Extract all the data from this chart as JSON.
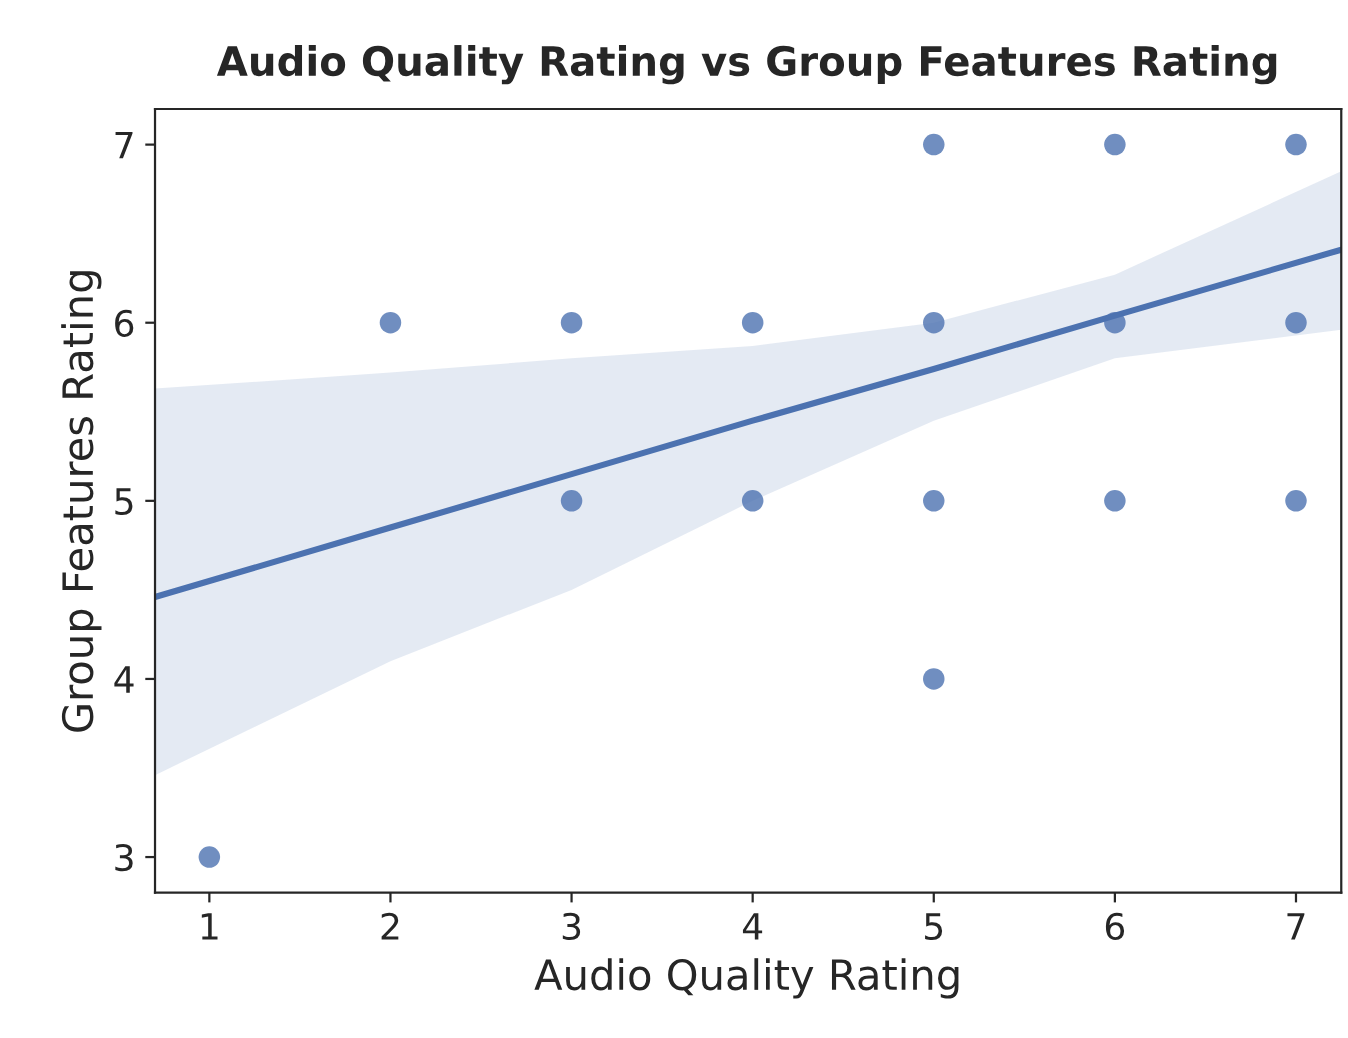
{
  "chart_data": {
    "type": "scatter",
    "title": "Audio Quality Rating vs Group Features Rating",
    "xlabel": "Audio Quality Rating",
    "ylabel": "Group Features Rating",
    "xlim": [
      0.7,
      7.25
    ],
    "ylim": [
      2.8,
      7.2
    ],
    "xticks": [
      1,
      2,
      3,
      4,
      5,
      6,
      7
    ],
    "yticks": [
      3,
      4,
      5,
      6,
      7
    ],
    "grid": false,
    "series": [
      {
        "marker": "circle",
        "color": "#4c72b0",
        "x": [
          1,
          2,
          3,
          3,
          4,
          4,
          5,
          5,
          5,
          5,
          6,
          6,
          6,
          7,
          7,
          7
        ],
        "values": [
          3,
          6,
          6,
          5,
          6,
          5,
          7,
          6,
          5,
          4,
          7,
          6,
          5,
          7,
          6,
          5
        ]
      },
      {
        "type": "line",
        "color": "#4c72b0",
        "line_style": "solid",
        "x": [
          0.7,
          2,
          3,
          4,
          5,
          6,
          7.25
        ],
        "values": [
          4.46,
          4.85,
          5.15,
          5.45,
          5.74,
          6.04,
          6.41
        ],
        "lower": [
          3.46,
          4.1,
          4.5,
          5.0,
          5.45,
          5.8,
          5.96
        ],
        "upper": [
          5.63,
          5.72,
          5.8,
          5.87,
          6.0,
          6.27,
          6.85
        ]
      }
    ]
  }
}
